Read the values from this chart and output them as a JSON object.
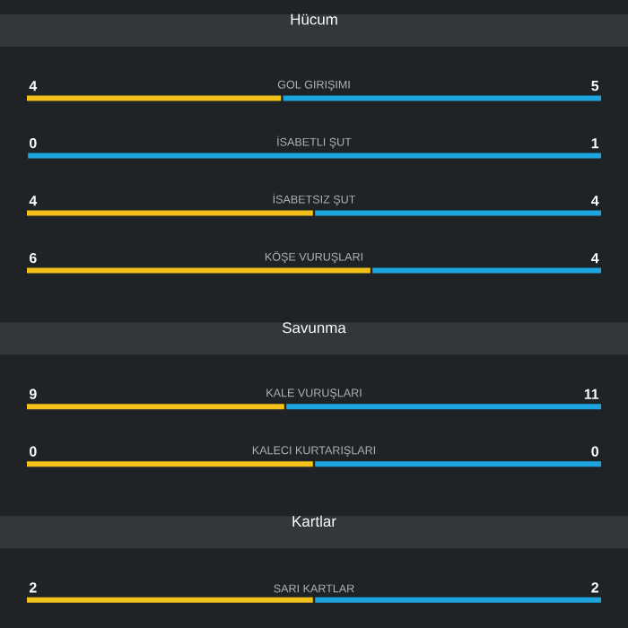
{
  "chart_data": [
    {
      "type": "other",
      "data_labels": true,
      "title": "Hücum",
      "categories": [
        "GOL GIRIŞIMI",
        "İSABETLI ŞUT",
        "İSABETSIZ ŞUT",
        "KÖŞE VURUŞLARI"
      ],
      "series": [
        {
          "color": "#f2c21b",
          "values": [
            4,
            0,
            4,
            6
          ]
        },
        {
          "color": "#1ea5e0",
          "values": [
            5,
            1,
            4,
            4
          ]
        }
      ]
    },
    {
      "type": "other",
      "data_labels": true,
      "title": "Savunma",
      "categories": [
        "KALE VURUŞLARI",
        "KALECI KURTARIŞLARI"
      ],
      "series": [
        {
          "color": "#f2c21b",
          "values": [
            9,
            0
          ]
        },
        {
          "color": "#1ea5e0",
          "values": [
            11,
            0
          ]
        }
      ]
    },
    {
      "type": "other",
      "data_labels": true,
      "title": "Kartlar",
      "categories": [
        "SARI KARTLAR"
      ],
      "series": [
        {
          "color": "#f2c21b",
          "values": [
            2
          ]
        },
        {
          "color": "#1ea5e0",
          "values": [
            2
          ]
        }
      ]
    }
  ]
}
